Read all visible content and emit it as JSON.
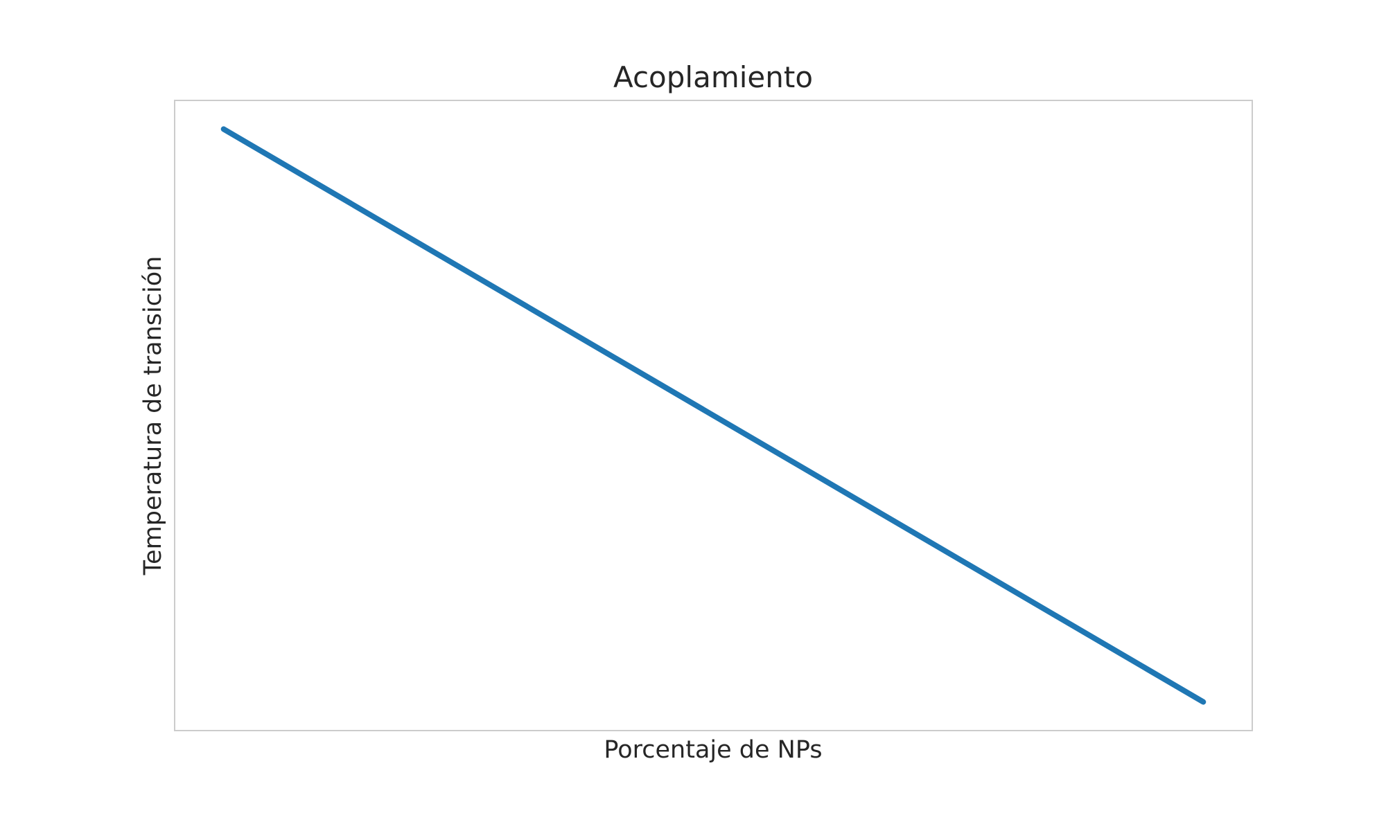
{
  "chart_data": {
    "type": "line",
    "title": "Acoplamiento",
    "xlabel": "Porcentaje de NPs",
    "ylabel": "Temperatura de transición",
    "x": [
      0,
      1
    ],
    "series": [
      {
        "values": [
          1,
          0
        ],
        "color": "#1f77b4"
      }
    ],
    "xlim": [
      -0.05,
      1.05
    ],
    "ylim": [
      -0.05,
      1.05
    ],
    "grid": false,
    "xticks_visible": false,
    "yticks_visible": false
  }
}
